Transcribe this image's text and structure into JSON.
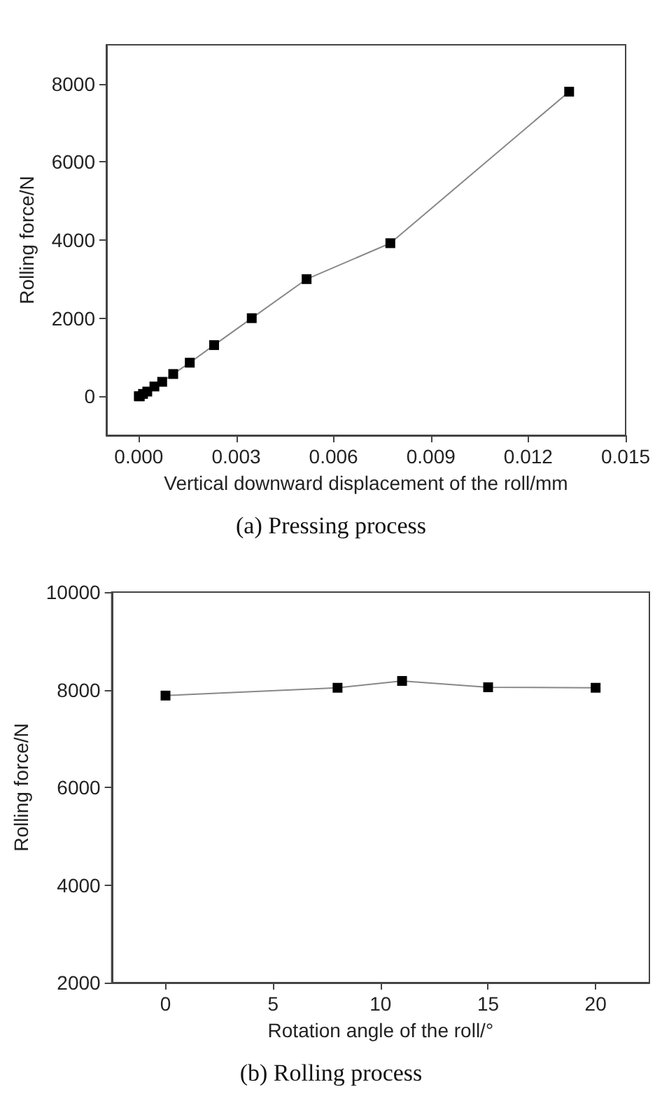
{
  "chart_data": [
    {
      "type": "line",
      "title": "(a) Pressing process",
      "xlabel": "Vertical downward displacement of the roll/mm",
      "ylabel": "Rolling force/N",
      "x": [
        0,
        3e-05,
        0.00013,
        0.00026,
        0.00048,
        0.00072,
        0.00106,
        0.00157,
        0.00232,
        0.00348,
        0.00517,
        0.00775,
        0.01326
      ],
      "series": [
        {
          "color": "#000000",
          "values": [
            0,
            0,
            60,
            120,
            250,
            370,
            570,
            860,
            1310,
            2000,
            3000,
            3920,
            7800
          ]
        }
      ],
      "xlim": [
        -0.001,
        0.015
      ],
      "xticks": [
        {
          "value": 0,
          "label": "0.000"
        },
        {
          "value": 0.003,
          "label": "0.003"
        },
        {
          "value": 0.006,
          "label": "0.006"
        },
        {
          "value": 0.009,
          "label": "0.009"
        },
        {
          "value": 0.012,
          "label": "0.012"
        },
        {
          "value": 0.015,
          "label": "0.015"
        }
      ],
      "ylim": [
        -1000,
        9000
      ],
      "yticks": [
        0,
        2000,
        4000,
        6000,
        8000
      ],
      "marker": "square"
    },
    {
      "type": "line",
      "title": "(b) Rolling process",
      "xlabel": "Rotation angle of the roll/°",
      "ylabel": "Rolling force/N",
      "x": [
        0,
        8,
        11,
        15,
        20
      ],
      "series": [
        {
          "color": "#000000",
          "values": [
            7880,
            8040,
            8180,
            8050,
            8040
          ]
        }
      ],
      "xlim": [
        -2.5,
        22.5
      ],
      "xticks": [
        0,
        5,
        10,
        15,
        20
      ],
      "ylim": [
        2000,
        10000
      ],
      "yticks": [
        2000,
        4000,
        6000,
        8000,
        10000
      ],
      "marker": "square"
    }
  ]
}
